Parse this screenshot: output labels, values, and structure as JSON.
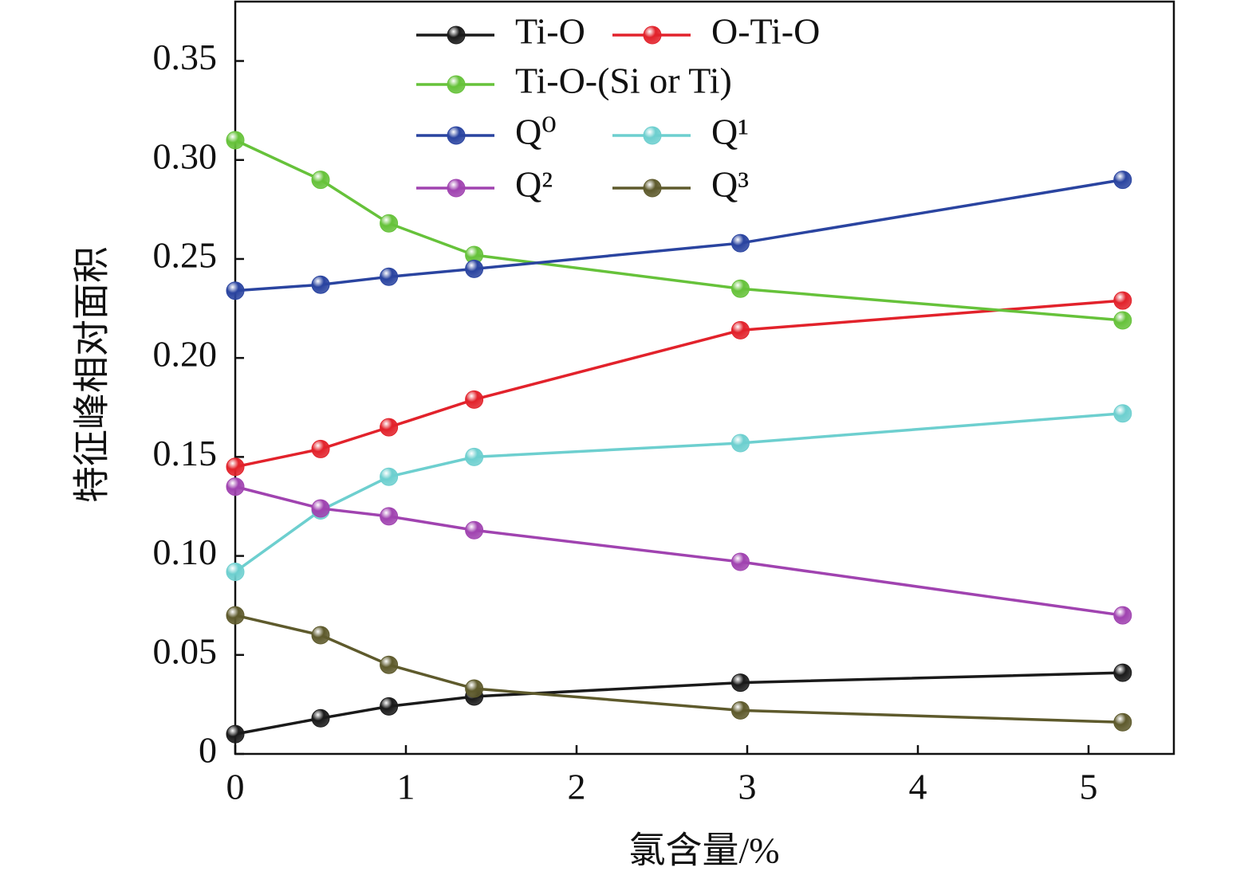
{
  "chart_data": {
    "type": "line",
    "x_label": "氯含量/%",
    "y_label": "特征峰相对面积",
    "x": [
      0,
      0.5,
      0.9,
      1.4,
      2.96,
      5.2
    ],
    "xlim": [
      0,
      5.5
    ],
    "xticks": [
      0,
      1,
      2,
      3,
      4,
      5
    ],
    "ylim": [
      0,
      0.38
    ],
    "yticks": [
      0,
      0.05,
      {
        "value": 0.1,
        "label": "0.10"
      },
      0.15,
      {
        "value": 0.2,
        "label": "0.20"
      },
      0.25,
      {
        "value": 0.3,
        "label": "0.30"
      },
      0.35
    ],
    "grid": false,
    "series": [
      {
        "name": "Ti-O",
        "color": "#1a1a1a",
        "values": [
          0.01,
          0.018,
          0.024,
          0.029,
          0.036,
          0.041
        ]
      },
      {
        "name": "O-Ti-O",
        "color": "#e2222b",
        "values": [
          0.145,
          0.154,
          0.165,
          0.179,
          0.214,
          0.229
        ]
      },
      {
        "name": "Ti-O-(Si or Ti)",
        "color": "#66c23a",
        "values": [
          0.31,
          0.29,
          0.268,
          0.252,
          0.235,
          0.219
        ]
      },
      {
        "name": "Q⁰",
        "color": "#2a44a0",
        "values": [
          0.234,
          0.237,
          0.241,
          0.245,
          0.258,
          0.29
        ]
      },
      {
        "name": "Q¹",
        "color": "#6dcfcf",
        "values": [
          0.092,
          0.123,
          0.14,
          0.15,
          0.157,
          0.172
        ]
      },
      {
        "name": "Q²",
        "color": "#a043b0",
        "values": [
          0.135,
          0.124,
          0.12,
          0.113,
          0.097,
          0.07
        ]
      },
      {
        "name": "Q³",
        "color": "#5e5a2c",
        "values": [
          0.07,
          0.06,
          0.045,
          0.033,
          0.022,
          0.016
        ]
      }
    ]
  }
}
